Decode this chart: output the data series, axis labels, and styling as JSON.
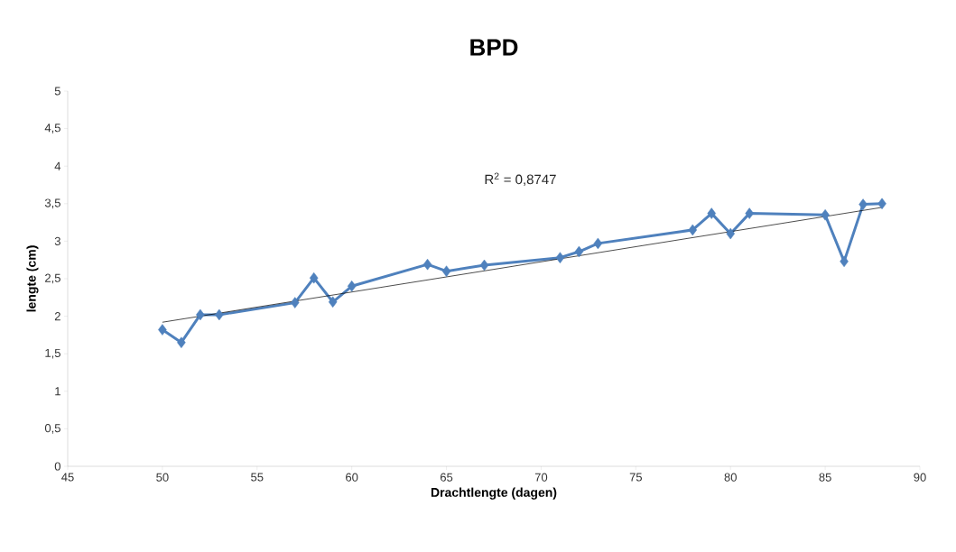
{
  "chart_data": {
    "type": "line",
    "title": "BPD",
    "xlabel": "Drachtlengte (dagen)",
    "ylabel": "lengte (cm)",
    "annotations": [
      "R$^{2}$ = 0,8747"
    ],
    "x": [
      50,
      51,
      52,
      53,
      57,
      58,
      59,
      60,
      64,
      65,
      67,
      71,
      72,
      73,
      78,
      79,
      80,
      81,
      85,
      86,
      87,
      88
    ],
    "series": [
      {
        "color": "#4f81bd",
        "marker": "diamond",
        "values": [
          1.82,
          1.65,
          2.02,
          2.02,
          2.18,
          2.51,
          2.19,
          2.4,
          2.69,
          2.6,
          2.68,
          2.78,
          2.86,
          2.97,
          3.15,
          3.37,
          3.1,
          3.37,
          3.35,
          2.73,
          3.49,
          3.5
        ]
      },
      {
        "type": "line",
        "color": "#000000",
        "marker": "none",
        "x": [
          50,
          88
        ],
        "values": [
          1.92,
          3.45
        ]
      }
    ],
    "xlim": [
      45,
      90
    ],
    "xticks": [
      45,
      50,
      55,
      60,
      65,
      70,
      75,
      80,
      85,
      90
    ],
    "ylim": [
      0,
      5
    ],
    "yticks": [
      0,
      {
        "value": 0.5,
        "label": "0,5"
      },
      1,
      {
        "value": 1.5,
        "label": "1,5"
      },
      2,
      {
        "value": 2.5,
        "label": "2,5"
      },
      3,
      {
        "value": 3.5,
        "label": "3,5"
      },
      4,
      {
        "value": 4.5,
        "label": "4,5"
      },
      5
    ],
    "grid": false,
    "legend": false
  }
}
